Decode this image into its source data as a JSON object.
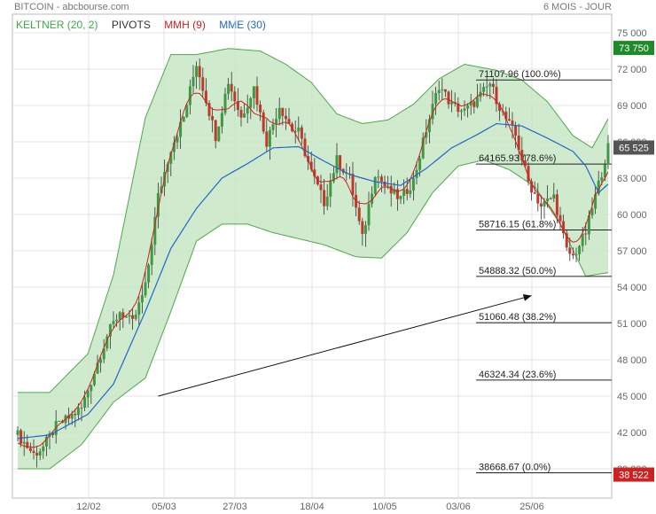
{
  "header": {
    "title": "BITCOIN - abcbourse.com",
    "period": "6 MOIS - JOUR"
  },
  "legend": [
    {
      "label": "KELTNER (20, 2)",
      "color": "#3fa646"
    },
    {
      "label": "PIVOTS",
      "color": "#333333"
    },
    {
      "label": "MMH (9)",
      "color": "#cc2222"
    },
    {
      "label": "MME (30)",
      "color": "#2266cc"
    }
  ],
  "colors": {
    "band_fill": "#c8e6c4",
    "band_line": "#4ea84a",
    "up": "#3d9a43",
    "down": "#c0392b",
    "mme": "#2266cc",
    "mmh": "#cc2222",
    "last_badge": "#555555",
    "high_badge": "#1f8a2a",
    "low_badge": "#cc2222"
  },
  "chart_data": {
    "type": "candlestick",
    "y_ticks": [
      "75 000",
      "72 000",
      "69 000",
      "66 000",
      "63 000",
      "60 000",
      "57 000",
      "54 000",
      "51 000",
      "48 000",
      "45 000",
      "42 000",
      "39 000"
    ],
    "ylim": [
      38000,
      76000
    ],
    "x_ticks": [
      "12/02",
      "05/03",
      "27/03",
      "18/04",
      "10/05",
      "03/06",
      "25/06"
    ],
    "price_anchors": [
      [
        0,
        41800
      ],
      [
        5,
        40200
      ],
      [
        8,
        40800
      ],
      [
        12,
        42500
      ],
      [
        16,
        43200
      ],
      [
        20,
        44000
      ],
      [
        24,
        47000
      ],
      [
        28,
        50000
      ],
      [
        32,
        52000
      ],
      [
        36,
        51000
      ],
      [
        40,
        54000
      ],
      [
        44,
        61500
      ],
      [
        48,
        65500
      ],
      [
        52,
        68000
      ],
      [
        56,
        72500
      ],
      [
        58,
        70500
      ],
      [
        62,
        66500
      ],
      [
        66,
        71000
      ],
      [
        70,
        68000
      ],
      [
        74,
        70500
      ],
      [
        78,
        66000
      ],
      [
        82,
        69000
      ],
      [
        86,
        67000
      ],
      [
        88,
        66800
      ],
      [
        92,
        63500
      ],
      [
        96,
        61000
      ],
      [
        100,
        64500
      ],
      [
        104,
        63000
      ],
      [
        108,
        58000
      ],
      [
        112,
        63500
      ],
      [
        116,
        62000
      ],
      [
        120,
        61300
      ],
      [
        124,
        62800
      ],
      [
        128,
        67000
      ],
      [
        132,
        70700
      ],
      [
        136,
        69000
      ],
      [
        140,
        68500
      ],
      [
        144,
        69500
      ],
      [
        148,
        70800
      ],
      [
        152,
        68300
      ],
      [
        156,
        66500
      ],
      [
        160,
        62700
      ],
      [
        164,
        60700
      ],
      [
        168,
        61500
      ],
      [
        172,
        57000
      ],
      [
        174,
        56500
      ],
      [
        178,
        58500
      ],
      [
        182,
        62500
      ],
      [
        185,
        65525
      ]
    ],
    "keltner_upper": [
      [
        0,
        45300
      ],
      [
        10,
        45300
      ],
      [
        22,
        48500
      ],
      [
        30,
        55000
      ],
      [
        40,
        68000
      ],
      [
        48,
        73200
      ],
      [
        56,
        73200
      ],
      [
        66,
        73700
      ],
      [
        76,
        73500
      ],
      [
        84,
        72400
      ],
      [
        92,
        70900
      ],
      [
        100,
        68300
      ],
      [
        108,
        67500
      ],
      [
        116,
        67800
      ],
      [
        124,
        69100
      ],
      [
        132,
        71200
      ],
      [
        140,
        72400
      ],
      [
        150,
        71900
      ],
      [
        158,
        71100
      ],
      [
        166,
        69300
      ],
      [
        174,
        66500
      ],
      [
        180,
        65500
      ],
      [
        185,
        67900
      ]
    ],
    "keltner_lower": [
      [
        0,
        39000
      ],
      [
        10,
        39000
      ],
      [
        20,
        41000
      ],
      [
        30,
        44500
      ],
      [
        40,
        46500
      ],
      [
        48,
        52000
      ],
      [
        56,
        57800
      ],
      [
        64,
        59200
      ],
      [
        72,
        59200
      ],
      [
        80,
        58500
      ],
      [
        88,
        58000
      ],
      [
        96,
        57500
      ],
      [
        106,
        56500
      ],
      [
        114,
        56400
      ],
      [
        122,
        58500
      ],
      [
        130,
        61800
      ],
      [
        138,
        64000
      ],
      [
        146,
        64500
      ],
      [
        154,
        63700
      ],
      [
        162,
        62300
      ],
      [
        170,
        59200
      ],
      [
        178,
        54900
      ],
      [
        185,
        55200
      ]
    ],
    "mme": [
      [
        0,
        41500
      ],
      [
        10,
        41800
      ],
      [
        22,
        43500
      ],
      [
        30,
        46000
      ],
      [
        40,
        52000
      ],
      [
        48,
        57200
      ],
      [
        56,
        60500
      ],
      [
        64,
        63000
      ],
      [
        72,
        64200
      ],
      [
        80,
        65500
      ],
      [
        88,
        65600
      ],
      [
        96,
        64400
      ],
      [
        104,
        63300
      ],
      [
        112,
        62700
      ],
      [
        120,
        62400
      ],
      [
        128,
        63800
      ],
      [
        136,
        65500
      ],
      [
        144,
        66600
      ],
      [
        150,
        67500
      ],
      [
        158,
        67300
      ],
      [
        166,
        66300
      ],
      [
        174,
        65200
      ],
      [
        178,
        64000
      ],
      [
        182,
        61800
      ],
      [
        185,
        62500
      ]
    ],
    "fibonacci": [
      {
        "label": "71107.96  (100.0%)",
        "value": 71108
      },
      {
        "label": "64165.93  (78.6%)",
        "value": 64166
      },
      {
        "label": "58716.15  (61.8%)",
        "value": 58716
      },
      {
        "label": "54888.32  (50.0%)",
        "value": 54888
      },
      {
        "label": "51060.48  (38.2%)",
        "value": 51060
      },
      {
        "label": "46324.34  (23.6%)",
        "value": 46324
      },
      {
        "label": "38668.67  (0.0%)",
        "value": 38669
      }
    ],
    "badges": {
      "high": "73 750",
      "last": "65 525",
      "low": "38 522"
    },
    "trend_arrow": {
      "from_index": 44,
      "from_value": 45000,
      "to_index": 161,
      "to_value": 53300
    }
  }
}
